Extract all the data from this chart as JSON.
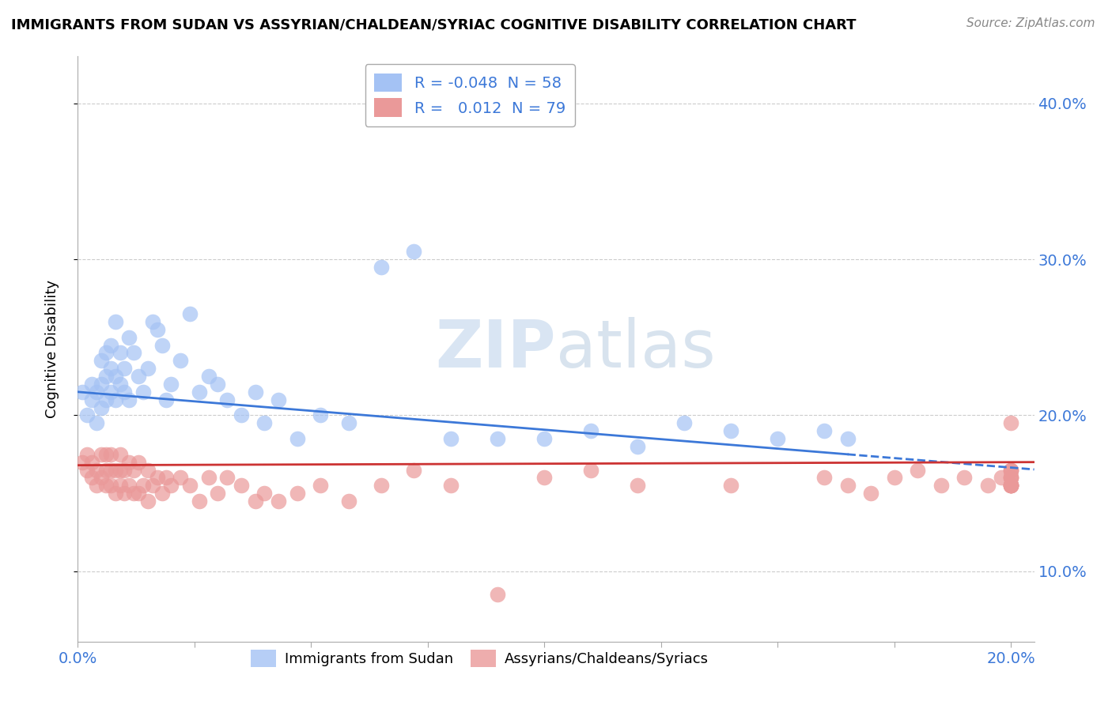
{
  "title": "IMMIGRANTS FROM SUDAN VS ASSYRIAN/CHALDEAN/SYRIAC COGNITIVE DISABILITY CORRELATION CHART",
  "source": "Source: ZipAtlas.com",
  "ylabel": "Cognitive Disability",
  "xlim": [
    0.0,
    0.205
  ],
  "ylim": [
    0.055,
    0.43
  ],
  "x_tick_positions": [
    0.0,
    0.025,
    0.05,
    0.075,
    0.1,
    0.125,
    0.15,
    0.175,
    0.2
  ],
  "x_tick_labels": [
    "0.0%",
    "",
    "",
    "",
    "",
    "",
    "",
    "",
    "20.0%"
  ],
  "y_tick_positions": [
    0.1,
    0.2,
    0.3,
    0.4
  ],
  "y_tick_labels": [
    "10.0%",
    "20.0%",
    "30.0%",
    "40.0%"
  ],
  "blue_R": "-0.048",
  "blue_N": "58",
  "pink_R": "0.012",
  "pink_N": "79",
  "blue_color": "#a4c2f4",
  "pink_color": "#ea9999",
  "blue_line_color": "#3c78d8",
  "pink_line_color": "#cc3333",
  "text_color_blue": "#3c78d8",
  "legend_label_blue": "Immigrants from Sudan",
  "legend_label_pink": "Assyrians/Chaldeans/Syriacs",
  "watermark_text": "ZIPatlas",
  "blue_x": [
    0.001,
    0.002,
    0.003,
    0.003,
    0.004,
    0.004,
    0.005,
    0.005,
    0.005,
    0.006,
    0.006,
    0.006,
    0.007,
    0.007,
    0.007,
    0.008,
    0.008,
    0.008,
    0.009,
    0.009,
    0.01,
    0.01,
    0.011,
    0.011,
    0.012,
    0.013,
    0.014,
    0.015,
    0.016,
    0.017,
    0.018,
    0.019,
    0.02,
    0.022,
    0.024,
    0.026,
    0.028,
    0.03,
    0.032,
    0.035,
    0.038,
    0.04,
    0.043,
    0.047,
    0.052,
    0.058,
    0.065,
    0.072,
    0.08,
    0.09,
    0.1,
    0.11,
    0.12,
    0.13,
    0.14,
    0.15,
    0.16,
    0.165
  ],
  "blue_y": [
    0.215,
    0.2,
    0.21,
    0.22,
    0.195,
    0.215,
    0.205,
    0.22,
    0.235,
    0.21,
    0.225,
    0.24,
    0.215,
    0.23,
    0.245,
    0.21,
    0.225,
    0.26,
    0.22,
    0.24,
    0.215,
    0.23,
    0.25,
    0.21,
    0.24,
    0.225,
    0.215,
    0.23,
    0.26,
    0.255,
    0.245,
    0.21,
    0.22,
    0.235,
    0.265,
    0.215,
    0.225,
    0.22,
    0.21,
    0.2,
    0.215,
    0.195,
    0.21,
    0.185,
    0.2,
    0.195,
    0.295,
    0.305,
    0.185,
    0.185,
    0.185,
    0.19,
    0.18,
    0.195,
    0.19,
    0.185,
    0.19,
    0.185
  ],
  "pink_x": [
    0.001,
    0.002,
    0.002,
    0.003,
    0.003,
    0.004,
    0.004,
    0.005,
    0.005,
    0.006,
    0.006,
    0.006,
    0.007,
    0.007,
    0.007,
    0.008,
    0.008,
    0.009,
    0.009,
    0.009,
    0.01,
    0.01,
    0.011,
    0.011,
    0.012,
    0.012,
    0.013,
    0.013,
    0.014,
    0.015,
    0.015,
    0.016,
    0.017,
    0.018,
    0.019,
    0.02,
    0.022,
    0.024,
    0.026,
    0.028,
    0.03,
    0.032,
    0.035,
    0.038,
    0.04,
    0.043,
    0.047,
    0.052,
    0.058,
    0.065,
    0.072,
    0.08,
    0.09,
    0.1,
    0.11,
    0.12,
    0.14,
    0.16,
    0.165,
    0.17,
    0.175,
    0.18,
    0.185,
    0.19,
    0.195,
    0.198,
    0.2,
    0.2,
    0.2,
    0.2,
    0.2,
    0.2,
    0.2,
    0.2,
    0.2,
    0.2,
    0.2,
    0.2,
    0.2
  ],
  "pink_y": [
    0.17,
    0.165,
    0.175,
    0.16,
    0.17,
    0.155,
    0.165,
    0.16,
    0.175,
    0.155,
    0.165,
    0.175,
    0.155,
    0.165,
    0.175,
    0.15,
    0.165,
    0.155,
    0.165,
    0.175,
    0.15,
    0.165,
    0.155,
    0.17,
    0.15,
    0.165,
    0.15,
    0.17,
    0.155,
    0.145,
    0.165,
    0.155,
    0.16,
    0.15,
    0.16,
    0.155,
    0.16,
    0.155,
    0.145,
    0.16,
    0.15,
    0.16,
    0.155,
    0.145,
    0.15,
    0.145,
    0.15,
    0.155,
    0.145,
    0.155,
    0.165,
    0.155,
    0.085,
    0.16,
    0.165,
    0.155,
    0.155,
    0.16,
    0.155,
    0.15,
    0.16,
    0.165,
    0.155,
    0.16,
    0.155,
    0.16,
    0.165,
    0.155,
    0.16,
    0.155,
    0.165,
    0.155,
    0.16,
    0.155,
    0.165,
    0.155,
    0.16,
    0.155,
    0.195
  ]
}
